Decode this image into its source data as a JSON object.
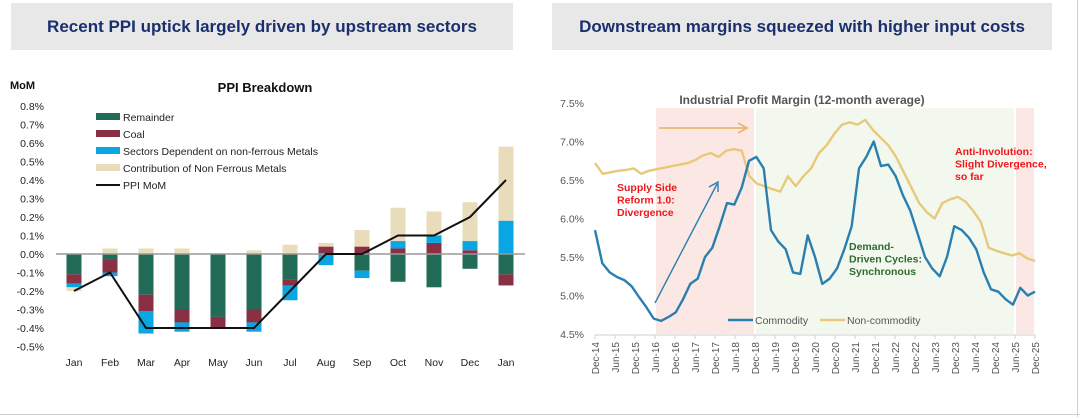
{
  "panels": {
    "left_title": "Recent PPI uptick largely driven by upstream sectors",
    "right_title": "Downstream margins squeezed with higher input costs"
  },
  "chart_data": [
    {
      "type": "bar",
      "stacked": true,
      "title": "PPI Breakdown",
      "ylabel": "MoM",
      "xlabel": "",
      "ylim": [
        -0.5,
        0.8
      ],
      "y_unit": "%",
      "yticks": [
        "0.8%",
        "0.7%",
        "0.6%",
        "0.5%",
        "0.4%",
        "0.3%",
        "0.2%",
        "0.1%",
        "0.0%",
        "-0.1%",
        "-0.2%",
        "-0.3%",
        "-0.4%",
        "-0.5%"
      ],
      "ytick_values": [
        0.8,
        0.7,
        0.6,
        0.5,
        0.4,
        0.3,
        0.2,
        0.1,
        0.0,
        -0.1,
        -0.2,
        -0.3,
        -0.4,
        -0.5
      ],
      "categories": [
        "Jan",
        "Feb",
        "Mar",
        "Apr",
        "May",
        "Jun",
        "Jul",
        "Aug",
        "Sep",
        "Oct",
        "Nov",
        "Dec",
        "Jan"
      ],
      "legend_position": "top-left",
      "series": [
        {
          "name": "Remainder",
          "color": "#226b57",
          "values": [
            -0.11,
            -0.03,
            -0.22,
            -0.3,
            -0.34,
            -0.3,
            -0.14,
            0.0,
            -0.09,
            -0.15,
            -0.18,
            -0.08,
            -0.11
          ]
        },
        {
          "name": "Coal",
          "color": "#8a3045",
          "values": [
            -0.05,
            -0.07,
            -0.09,
            -0.07,
            -0.06,
            -0.07,
            -0.03,
            0.04,
            0.04,
            0.03,
            0.06,
            0.02,
            -0.06
          ]
        },
        {
          "name": "Sectors Dependent on non-ferrous Metals",
          "color": "#0aa6e3",
          "values": [
            -0.02,
            -0.02,
            -0.12,
            -0.05,
            0.0,
            -0.05,
            -0.08,
            -0.06,
            -0.04,
            0.04,
            0.04,
            0.05,
            0.18
          ]
        },
        {
          "name": "Contribution of Non Ferrous Metals",
          "color": "#e8dcba",
          "values": [
            -0.02,
            0.03,
            0.03,
            0.03,
            0.0,
            0.02,
            0.05,
            0.02,
            0.09,
            0.18,
            0.13,
            0.21,
            0.4
          ]
        }
      ],
      "line_series": {
        "name": "PPI MoM",
        "color": "#111111",
        "values": [
          -0.2,
          -0.1,
          -0.4,
          -0.4,
          -0.4,
          -0.4,
          -0.2,
          0.0,
          0.0,
          0.1,
          0.1,
          0.2,
          0.4
        ]
      }
    },
    {
      "type": "line",
      "title": "Industrial Profit Margin (12-month average)",
      "xlabel": "",
      "ylabel": "",
      "ylim": [
        4.5,
        7.5
      ],
      "yticks": [
        "7.5%",
        "7.0%",
        "6.5%",
        "6.0%",
        "5.5%",
        "5.0%",
        "4.5%"
      ],
      "ytick_values": [
        7.5,
        7.0,
        6.5,
        6.0,
        5.5,
        5.0,
        4.5
      ],
      "xticks": [
        "Dec-14",
        "Jun-15",
        "Dec-15",
        "Jun-16",
        "Dec-16",
        "Jun-17",
        "Dec-17",
        "Jun-18",
        "Dec-18",
        "Jun-19",
        "Dec-19",
        "Jun-20",
        "Dec-20",
        "Jun-21",
        "Dec-21",
        "Jun-22",
        "Dec-22",
        "Jun-23",
        "Dec-23",
        "Jun-24",
        "Dec-24",
        "Jun-25",
        "Dec-25"
      ],
      "legend_position": "bottom-center",
      "series": [
        {
          "name": "Commodity",
          "color": "#2a7fae",
          "values": [
            5.85,
            5.42,
            5.3,
            5.24,
            5.2,
            5.12,
            4.98,
            4.85,
            4.7,
            4.67,
            4.72,
            4.78,
            4.95,
            5.15,
            5.22,
            5.5,
            5.62,
            5.9,
            6.2,
            6.18,
            6.4,
            6.75,
            6.8,
            6.65,
            5.85,
            5.7,
            5.6,
            5.3,
            5.28,
            5.78,
            5.5,
            5.15,
            5.22,
            5.35,
            5.6,
            5.9,
            6.65,
            6.8,
            7.0,
            6.68,
            6.7,
            6.55,
            6.3,
            6.1,
            5.8,
            5.5,
            5.35,
            5.25,
            5.5,
            5.9,
            5.85,
            5.75,
            5.6,
            5.3,
            5.08,
            5.05,
            4.95,
            4.88,
            5.1,
            5.0,
            5.05
          ]
        },
        {
          "name": "Non-commodity",
          "color": "#e8c97a",
          "values": [
            6.72,
            6.58,
            6.6,
            6.62,
            6.63,
            6.65,
            6.58,
            6.62,
            6.64,
            6.66,
            6.68,
            6.7,
            6.72,
            6.76,
            6.82,
            6.85,
            6.8,
            6.88,
            6.9,
            6.88,
            6.55,
            6.45,
            6.42,
            6.38,
            6.35,
            6.55,
            6.42,
            6.55,
            6.65,
            6.85,
            6.95,
            7.1,
            7.22,
            7.25,
            7.22,
            7.28,
            7.15,
            7.05,
            6.95,
            6.8,
            6.6,
            6.4,
            6.2,
            6.08,
            6.0,
            6.2,
            6.25,
            6.28,
            6.22,
            6.1,
            5.95,
            5.62,
            5.58,
            5.55,
            5.52,
            5.55,
            5.48,
            5.45
          ]
        }
      ],
      "annotations": [
        {
          "text": "Supply Side\nReform 1.0:\nDivergence",
          "color": "#f0161b"
        },
        {
          "text": "Demand-\nDriven Cycles:\nSynchronous",
          "color": "#2e6b2e"
        },
        {
          "text": "Anti-Involution:\nSlight Divergence,\nso far",
          "color": "#f0161b"
        }
      ],
      "shaded_regions": [
        {
          "label": "Supply Side Reform 1.0",
          "from": "Jun-16",
          "to": "Dec-18",
          "color": "#fbe8e4"
        },
        {
          "label": "Demand-Driven Cycles",
          "from": "Dec-18",
          "to": "Jun-25",
          "color": "#f3f8ef"
        },
        {
          "label": "Anti-Involution",
          "from": "Jun-25",
          "to": "Dec-25",
          "color": "#fbe8e4"
        }
      ]
    }
  ]
}
